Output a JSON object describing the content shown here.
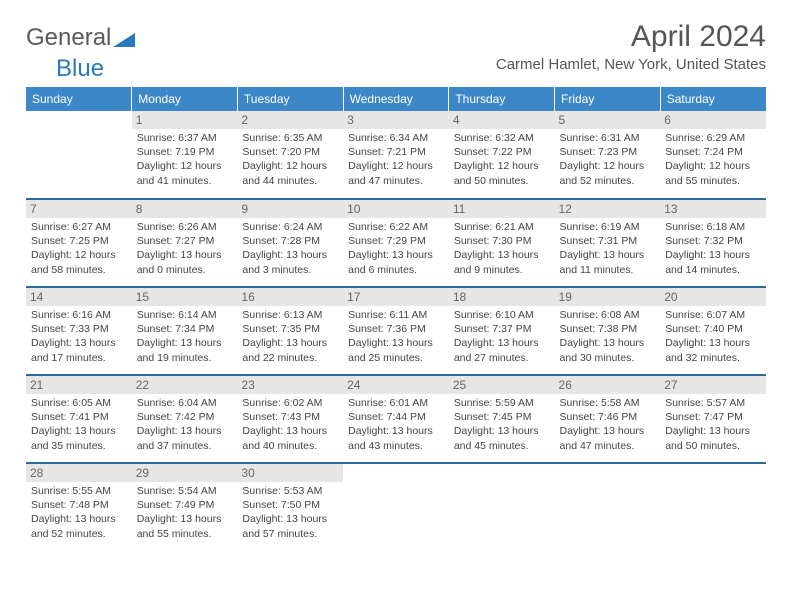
{
  "logo": {
    "part1": "General",
    "part2": "Blue"
  },
  "title": "April 2024",
  "location": "Carmel Hamlet, New York, United States",
  "header_bg": "#3b87c8",
  "header_text": "#ffffff",
  "daynum_bg": "#e6e6e6",
  "row_border": "#2a6aa0",
  "weekdays": [
    "Sunday",
    "Monday",
    "Tuesday",
    "Wednesday",
    "Thursday",
    "Friday",
    "Saturday"
  ],
  "weeks": [
    [
      {
        "n": "",
        "sr": "",
        "ss": "",
        "dl": ""
      },
      {
        "n": "1",
        "sr": "Sunrise: 6:37 AM",
        "ss": "Sunset: 7:19 PM",
        "dl": "Daylight: 12 hours and 41 minutes."
      },
      {
        "n": "2",
        "sr": "Sunrise: 6:35 AM",
        "ss": "Sunset: 7:20 PM",
        "dl": "Daylight: 12 hours and 44 minutes."
      },
      {
        "n": "3",
        "sr": "Sunrise: 6:34 AM",
        "ss": "Sunset: 7:21 PM",
        "dl": "Daylight: 12 hours and 47 minutes."
      },
      {
        "n": "4",
        "sr": "Sunrise: 6:32 AM",
        "ss": "Sunset: 7:22 PM",
        "dl": "Daylight: 12 hours and 50 minutes."
      },
      {
        "n": "5",
        "sr": "Sunrise: 6:31 AM",
        "ss": "Sunset: 7:23 PM",
        "dl": "Daylight: 12 hours and 52 minutes."
      },
      {
        "n": "6",
        "sr": "Sunrise: 6:29 AM",
        "ss": "Sunset: 7:24 PM",
        "dl": "Daylight: 12 hours and 55 minutes."
      }
    ],
    [
      {
        "n": "7",
        "sr": "Sunrise: 6:27 AM",
        "ss": "Sunset: 7:25 PM",
        "dl": "Daylight: 12 hours and 58 minutes."
      },
      {
        "n": "8",
        "sr": "Sunrise: 6:26 AM",
        "ss": "Sunset: 7:27 PM",
        "dl": "Daylight: 13 hours and 0 minutes."
      },
      {
        "n": "9",
        "sr": "Sunrise: 6:24 AM",
        "ss": "Sunset: 7:28 PM",
        "dl": "Daylight: 13 hours and 3 minutes."
      },
      {
        "n": "10",
        "sr": "Sunrise: 6:22 AM",
        "ss": "Sunset: 7:29 PM",
        "dl": "Daylight: 13 hours and 6 minutes."
      },
      {
        "n": "11",
        "sr": "Sunrise: 6:21 AM",
        "ss": "Sunset: 7:30 PM",
        "dl": "Daylight: 13 hours and 9 minutes."
      },
      {
        "n": "12",
        "sr": "Sunrise: 6:19 AM",
        "ss": "Sunset: 7:31 PM",
        "dl": "Daylight: 13 hours and 11 minutes."
      },
      {
        "n": "13",
        "sr": "Sunrise: 6:18 AM",
        "ss": "Sunset: 7:32 PM",
        "dl": "Daylight: 13 hours and 14 minutes."
      }
    ],
    [
      {
        "n": "14",
        "sr": "Sunrise: 6:16 AM",
        "ss": "Sunset: 7:33 PM",
        "dl": "Daylight: 13 hours and 17 minutes."
      },
      {
        "n": "15",
        "sr": "Sunrise: 6:14 AM",
        "ss": "Sunset: 7:34 PM",
        "dl": "Daylight: 13 hours and 19 minutes."
      },
      {
        "n": "16",
        "sr": "Sunrise: 6:13 AM",
        "ss": "Sunset: 7:35 PM",
        "dl": "Daylight: 13 hours and 22 minutes."
      },
      {
        "n": "17",
        "sr": "Sunrise: 6:11 AM",
        "ss": "Sunset: 7:36 PM",
        "dl": "Daylight: 13 hours and 25 minutes."
      },
      {
        "n": "18",
        "sr": "Sunrise: 6:10 AM",
        "ss": "Sunset: 7:37 PM",
        "dl": "Daylight: 13 hours and 27 minutes."
      },
      {
        "n": "19",
        "sr": "Sunrise: 6:08 AM",
        "ss": "Sunset: 7:38 PM",
        "dl": "Daylight: 13 hours and 30 minutes."
      },
      {
        "n": "20",
        "sr": "Sunrise: 6:07 AM",
        "ss": "Sunset: 7:40 PM",
        "dl": "Daylight: 13 hours and 32 minutes."
      }
    ],
    [
      {
        "n": "21",
        "sr": "Sunrise: 6:05 AM",
        "ss": "Sunset: 7:41 PM",
        "dl": "Daylight: 13 hours and 35 minutes."
      },
      {
        "n": "22",
        "sr": "Sunrise: 6:04 AM",
        "ss": "Sunset: 7:42 PM",
        "dl": "Daylight: 13 hours and 37 minutes."
      },
      {
        "n": "23",
        "sr": "Sunrise: 6:02 AM",
        "ss": "Sunset: 7:43 PM",
        "dl": "Daylight: 13 hours and 40 minutes."
      },
      {
        "n": "24",
        "sr": "Sunrise: 6:01 AM",
        "ss": "Sunset: 7:44 PM",
        "dl": "Daylight: 13 hours and 43 minutes."
      },
      {
        "n": "25",
        "sr": "Sunrise: 5:59 AM",
        "ss": "Sunset: 7:45 PM",
        "dl": "Daylight: 13 hours and 45 minutes."
      },
      {
        "n": "26",
        "sr": "Sunrise: 5:58 AM",
        "ss": "Sunset: 7:46 PM",
        "dl": "Daylight: 13 hours and 47 minutes."
      },
      {
        "n": "27",
        "sr": "Sunrise: 5:57 AM",
        "ss": "Sunset: 7:47 PM",
        "dl": "Daylight: 13 hours and 50 minutes."
      }
    ],
    [
      {
        "n": "28",
        "sr": "Sunrise: 5:55 AM",
        "ss": "Sunset: 7:48 PM",
        "dl": "Daylight: 13 hours and 52 minutes."
      },
      {
        "n": "29",
        "sr": "Sunrise: 5:54 AM",
        "ss": "Sunset: 7:49 PM",
        "dl": "Daylight: 13 hours and 55 minutes."
      },
      {
        "n": "30",
        "sr": "Sunrise: 5:53 AM",
        "ss": "Sunset: 7:50 PM",
        "dl": "Daylight: 13 hours and 57 minutes."
      },
      {
        "n": "",
        "sr": "",
        "ss": "",
        "dl": ""
      },
      {
        "n": "",
        "sr": "",
        "ss": "",
        "dl": ""
      },
      {
        "n": "",
        "sr": "",
        "ss": "",
        "dl": ""
      },
      {
        "n": "",
        "sr": "",
        "ss": "",
        "dl": ""
      }
    ]
  ]
}
